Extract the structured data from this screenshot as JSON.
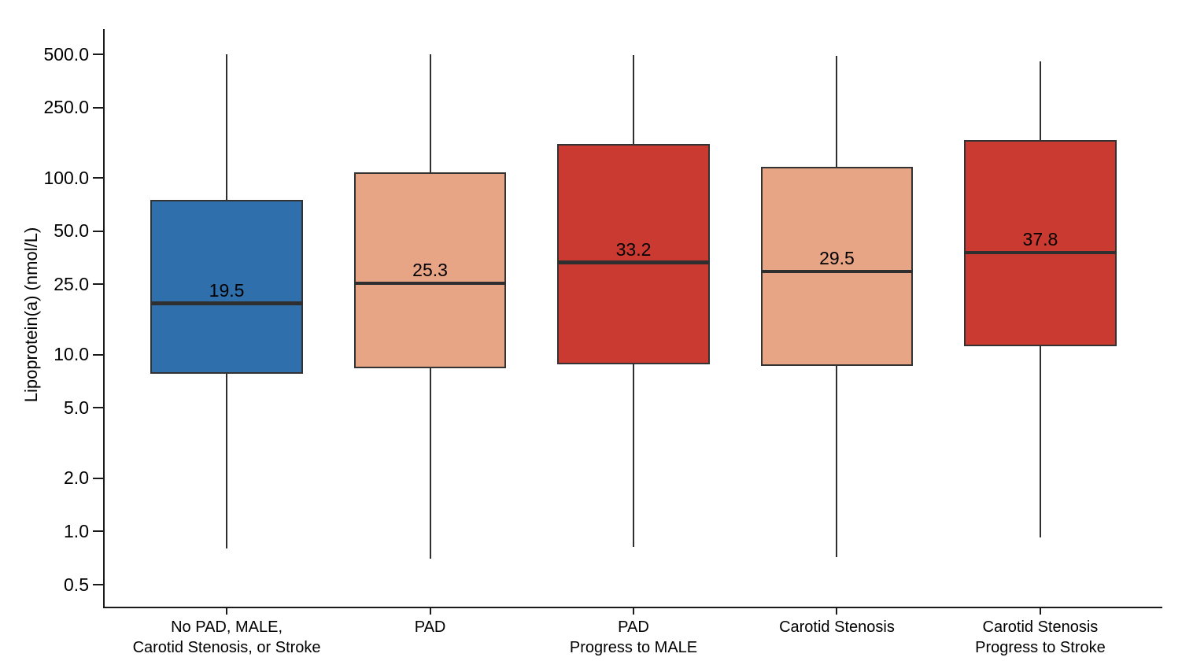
{
  "chart_data": {
    "type": "box",
    "title": "",
    "xlabel": "",
    "ylabel": "Lipoprotein(a) (nmol/L)",
    "yscale": "log",
    "ylim": [
      0.4,
      620
    ],
    "grid": false,
    "legend": false,
    "y_ticks": [
      500.0,
      250.0,
      100.0,
      50.0,
      25.0,
      10.0,
      5.0,
      2.0,
      1.0,
      0.5
    ],
    "y_tick_labels": [
      "500.0",
      "250.0",
      "100.0",
      "50.0",
      "25.0",
      "10.0",
      "5.0",
      "2.0",
      "1.0",
      "0.5"
    ],
    "colors": {
      "blue_box": "#2E6FAC",
      "salmon_box": "#E8A585",
      "red_box": "#CB3A31",
      "box_border": "#333333",
      "median_line": "#2F2F2F",
      "axis": "#1A1A1A"
    },
    "groups": [
      {
        "label_lines": [
          "No PAD, MALE,",
          "Carotid Stenosis, or Stroke"
        ],
        "color_key": "blue_box",
        "whisker_low": 0.8,
        "q1": 7.8,
        "median": 19.5,
        "q3": 75,
        "whisker_high": 500,
        "median_label": "19.5"
      },
      {
        "label_lines": [
          "PAD"
        ],
        "color_key": "salmon_box",
        "whisker_low": 0.7,
        "q1": 8.4,
        "median": 25.3,
        "q3": 108,
        "whisker_high": 500,
        "median_label": "25.3"
      },
      {
        "label_lines": [
          "PAD",
          "Progress to MALE"
        ],
        "color_key": "red_box",
        "whisker_low": 0.82,
        "q1": 8.8,
        "median": 33.2,
        "q3": 155,
        "whisker_high": 495,
        "median_label": "33.2"
      },
      {
        "label_lines": [
          "Carotid Stenosis"
        ],
        "color_key": "salmon_box",
        "whisker_low": 0.72,
        "q1": 8.6,
        "median": 29.5,
        "q3": 115,
        "whisker_high": 490,
        "median_label": "29.5"
      },
      {
        "label_lines": [
          "Carotid Stenosis",
          "Progress to Stroke"
        ],
        "color_key": "red_box",
        "whisker_low": 0.93,
        "q1": 11.2,
        "median": 37.8,
        "q3": 163,
        "whisker_high": 455,
        "median_label": "37.8"
      }
    ]
  }
}
